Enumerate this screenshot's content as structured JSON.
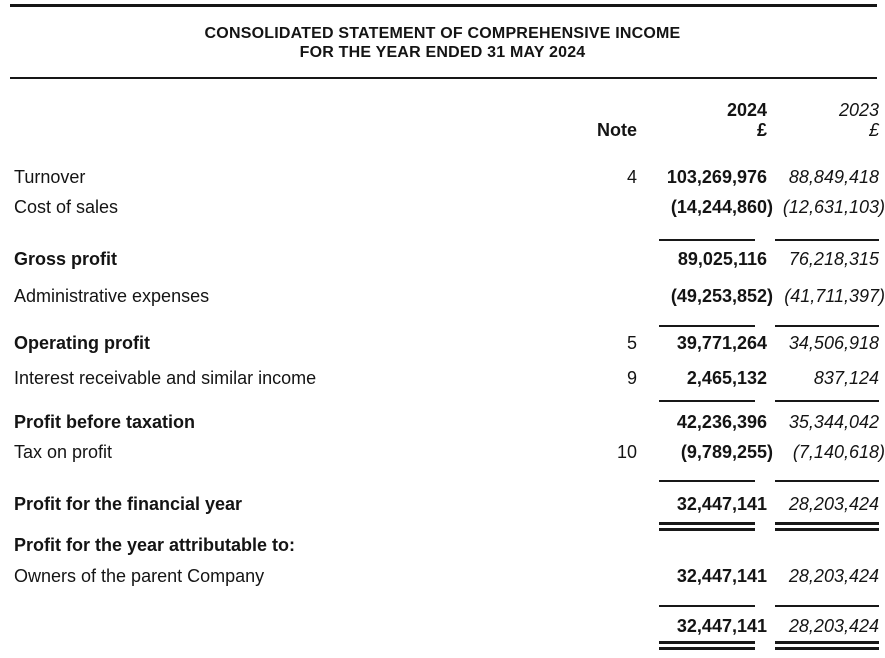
{
  "document": {
    "title": {
      "line1": "CONSOLIDATED STATEMENT OF COMPREHENSIVE INCOME",
      "line2": "FOR THE YEAR ENDED 31 MAY 2024"
    },
    "columns": {
      "note": "Note",
      "year_current": "2024",
      "year_prior": "2023",
      "currency_current": "£",
      "currency_prior": "£"
    },
    "rows": [
      {
        "label": "Turnover",
        "note": "4",
        "current": "103,269,976",
        "prior": "88,849,418",
        "bold": false
      },
      {
        "label": "Cost of sales",
        "note": "",
        "current": "(14,244,860)",
        "prior": "(12,631,103)",
        "bold": false
      },
      {
        "label": "Gross profit",
        "note": "",
        "current": "89,025,116",
        "prior": "76,218,315",
        "bold": true,
        "rule_above": true
      },
      {
        "label": "Administrative expenses",
        "note": "",
        "current": "(49,253,852)",
        "prior": "(41,711,397)",
        "bold": false
      },
      {
        "label": "Operating profit",
        "note": "5",
        "current": "39,771,264",
        "prior": "34,506,918",
        "bold": true,
        "rule_above": true
      },
      {
        "label": "Interest receivable and similar income",
        "note": "9",
        "current": "2,465,132",
        "prior": "837,124",
        "bold": false
      },
      {
        "label": "Profit before taxation",
        "note": "",
        "current": "42,236,396",
        "prior": "35,344,042",
        "bold": true,
        "rule_above": true
      },
      {
        "label": "Tax on profit",
        "note": "10",
        "current": "(9,789,255)",
        "prior": "(7,140,618)",
        "bold": false
      },
      {
        "label": "Profit for the financial year",
        "note": "",
        "current": "32,447,141",
        "prior": "28,203,424",
        "bold": true,
        "rule_above": true,
        "rule_below": "double"
      },
      {
        "label": "Profit for the year attributable to:",
        "note": "",
        "current": "",
        "prior": "",
        "bold": true
      },
      {
        "label": "Owners of the parent Company",
        "note": "",
        "current": "32,447,141",
        "prior": "28,203,424",
        "bold": false
      },
      {
        "label": "",
        "note": "",
        "current": "32,447,141",
        "prior": "28,203,424",
        "bold": false,
        "rule_above": true,
        "rule_below": "double"
      }
    ]
  }
}
